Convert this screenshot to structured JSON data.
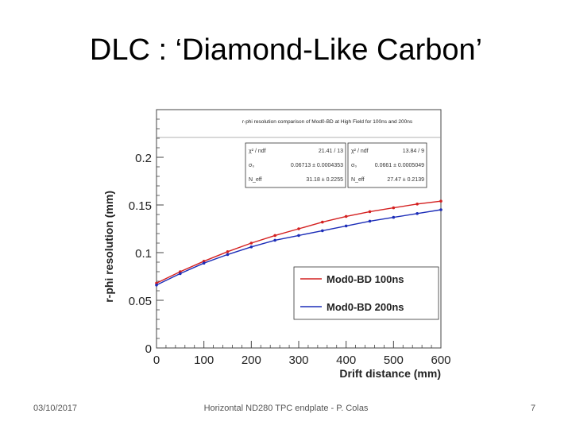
{
  "slide": {
    "title": "DLC : ‘Diamond-Like Carbon’",
    "footer_date": "03/10/2017",
    "footer_center": "Horizontal ND280 TPC endplate - P. Colas",
    "page_number": "7"
  },
  "chart_data": {
    "type": "line",
    "title": "r-phi resolution comparison of Mod0-BD at High Field for 100ns and 200ns",
    "xlabel": "Drift distance (mm)",
    "ylabel": "r-phi resolution (mm)",
    "xlim": [
      0,
      600
    ],
    "ylim": [
      0,
      0.25
    ],
    "xticks": [
      "0",
      "100",
      "200",
      "300",
      "400",
      "500",
      "600"
    ],
    "yticks": [
      "0",
      "0.05",
      "0.1",
      "0.15",
      "0.2"
    ],
    "grid": false,
    "legend_position": "bottom-right",
    "x": [
      0,
      50,
      100,
      150,
      200,
      250,
      300,
      350,
      400,
      450,
      500,
      550,
      600
    ],
    "series": [
      {
        "name": "Mod0-BD 100ns",
        "color": "#d42020",
        "values": [
          0.068,
          0.08,
          0.091,
          0.101,
          0.11,
          0.118,
          0.125,
          0.132,
          0.138,
          0.143,
          0.147,
          0.151,
          0.154
        ]
      },
      {
        "name": "Mod0-BD 200ns",
        "color": "#1c2db8",
        "values": [
          0.066,
          0.078,
          0.089,
          0.098,
          0.106,
          0.113,
          0.118,
          0.123,
          0.128,
          0.133,
          0.137,
          0.141,
          0.145
        ]
      }
    ],
    "stat_boxes": [
      {
        "rows": [
          {
            "label": "χ² / ndf",
            "value": "21.41 / 13"
          },
          {
            "label": "σ₀",
            "value": "0.06713 ± 0.0004353"
          },
          {
            "label": "N_eff",
            "value": "31.18 ± 0.2255"
          }
        ]
      },
      {
        "rows": [
          {
            "label": "χ² / ndf",
            "value": "13.84 / 9"
          },
          {
            "label": "σ₀",
            "value": "0.0661 ± 0.0005049"
          },
          {
            "label": "N_eff",
            "value": "27.47 ± 0.2139"
          }
        ]
      }
    ]
  }
}
